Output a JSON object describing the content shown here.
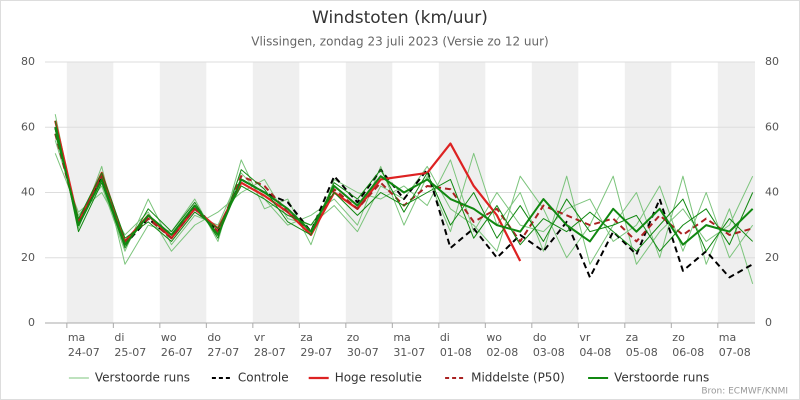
{
  "chart_data": {
    "type": "line",
    "title": "Windstoten (km/uur)",
    "subtitle": "Vlissingen, zondag 23 juli 2023 (Versie zo 12 uur)",
    "source": "Bron: ECMWF/KNMI",
    "x": [
      0.75,
      1.25,
      1.75,
      2.25,
      2.75,
      3.25,
      3.75,
      4.25,
      4.75,
      5.25,
      5.75,
      6.25,
      6.75,
      7.25,
      7.75,
      8.25,
      8.75,
      9.25,
      9.75,
      10.25,
      10.75,
      11.25,
      11.75,
      12.25,
      12.75,
      13.25,
      13.75,
      14.25,
      14.75,
      15.25,
      15.75
    ],
    "xlim": [
      0.53,
      15.8
    ],
    "xticks": [
      {
        "value": 1,
        "label": [
          "ma",
          "24-07"
        ]
      },
      {
        "value": 2,
        "label": [
          "di",
          "25-07"
        ]
      },
      {
        "value": 3,
        "label": [
          "wo",
          "26-07"
        ]
      },
      {
        "value": 4,
        "label": [
          "do",
          "27-07"
        ]
      },
      {
        "value": 5,
        "label": [
          "vr",
          "28-07"
        ]
      },
      {
        "value": 6,
        "label": [
          "za",
          "29-07"
        ]
      },
      {
        "value": 7,
        "label": [
          "zo",
          "30-07"
        ]
      },
      {
        "value": 8,
        "label": [
          "ma",
          "31-07"
        ]
      },
      {
        "value": 9,
        "label": [
          "di",
          "01-08"
        ]
      },
      {
        "value": 10,
        "label": [
          "wo",
          "02-08"
        ]
      },
      {
        "value": 11,
        "label": [
          "do",
          "03-08"
        ]
      },
      {
        "value": 12,
        "label": [
          "vr",
          "04-08"
        ]
      },
      {
        "value": 13,
        "label": [
          "za",
          "05-08"
        ]
      },
      {
        "value": 14,
        "label": [
          "zo",
          "06-08"
        ]
      },
      {
        "value": 15,
        "label": [
          "ma",
          "07-08"
        ]
      }
    ],
    "ylim": [
      0,
      80
    ],
    "yticks": [
      0,
      20,
      40,
      60,
      80
    ],
    "y2lim": [
      0,
      80
    ],
    "y2ticks": [
      0,
      20,
      40,
      60,
      80
    ],
    "grid": true,
    "series": [
      {
        "name": "Verstoorde runs",
        "color": "#7cc47c",
        "width": 1,
        "dash": "none",
        "values": [
          56,
          33,
          42,
          22,
          38,
          24,
          33,
          30,
          46,
          38,
          30,
          33,
          38,
          30,
          48,
          30,
          45,
          28,
          52,
          30,
          40,
          22,
          45,
          18,
          30,
          40,
          20,
          45,
          18,
          35,
          12
        ]
      },
      {
        "name": "Verstoorde runs",
        "color": "#7cc47c",
        "width": 1,
        "dash": "none",
        "values": [
          64,
          29,
          48,
          18,
          30,
          28,
          38,
          25,
          50,
          35,
          38,
          24,
          44,
          40,
          38,
          42,
          36,
          50,
          28,
          40,
          30,
          28,
          35,
          38,
          25,
          30,
          42,
          22,
          40,
          20,
          30
        ]
      },
      {
        "name": "Verstoorde runs",
        "color": "#7cc47c",
        "width": 1,
        "dash": "none",
        "values": [
          52,
          34,
          40,
          27,
          34,
          22,
          30,
          34,
          40,
          44,
          32,
          30,
          36,
          28,
          42,
          38,
          48,
          35,
          30,
          22,
          45,
          35,
          20,
          30,
          45,
          18,
          28,
          35,
          25,
          30,
          45
        ]
      },
      {
        "name": "Controle",
        "color": "#000000",
        "width": 2,
        "dash": "6,4",
        "values": [
          60,
          31,
          45,
          24,
          32,
          26,
          36,
          28,
          44,
          40,
          37,
          28,
          45,
          37,
          47,
          38,
          47,
          23,
          29,
          20,
          27,
          22,
          31,
          14,
          28,
          21,
          38,
          16,
          22,
          14,
          18
        ]
      },
      {
        "name": "Hoge resolutie",
        "color": "#dd2222",
        "width": 2.2,
        "dash": "none",
        "values": [
          62,
          31,
          46,
          25,
          33,
          26,
          35,
          29,
          43,
          39,
          34,
          27,
          40,
          35,
          44,
          45,
          46,
          55,
          42,
          33,
          19,
          null,
          null,
          null,
          null,
          null,
          null,
          null,
          null,
          null,
          null
        ]
      },
      {
        "name": "Middelste (P50)",
        "color": "#aa2222",
        "width": 2,
        "dash": "6,4",
        "values": [
          58,
          31,
          45,
          25,
          32,
          26,
          35,
          28,
          45,
          42,
          34,
          28,
          41,
          35,
          43,
          36,
          42,
          41,
          31,
          35,
          25,
          36,
          33,
          30,
          32,
          25,
          33,
          27,
          32,
          27,
          29
        ]
      },
      {
        "name": "Verstoorde runs",
        "color": "#118811",
        "width": 2,
        "dash": "none",
        "values": [
          60,
          30,
          44,
          24,
          33,
          27,
          36,
          27,
          44,
          40,
          35,
          28,
          42,
          36,
          45,
          40,
          44,
          38,
          35,
          30,
          28,
          38,
          30,
          25,
          35,
          28,
          35,
          24,
          30,
          28,
          35
        ]
      },
      {
        "name": "Verstoorde runs",
        "color": "#118811",
        "width": 1,
        "dash": "none",
        "values": [
          58,
          32,
          46,
          26,
          31,
          25,
          34,
          29,
          42,
          38,
          33,
          30,
          40,
          33,
          40,
          36,
          40,
          44,
          26,
          36,
          24,
          32,
          28,
          34,
          28,
          22,
          30,
          38,
          22,
          32,
          25
        ]
      },
      {
        "name": "Verstoorde runs",
        "color": "#118811",
        "width": 1,
        "dash": "none",
        "values": [
          62,
          28,
          43,
          23,
          35,
          28,
          37,
          26,
          47,
          41,
          31,
          27,
          43,
          38,
          47,
          34,
          46,
          30,
          40,
          26,
          36,
          25,
          38,
          28,
          30,
          33,
          22,
          30,
          35,
          24,
          40
        ]
      }
    ]
  }
}
